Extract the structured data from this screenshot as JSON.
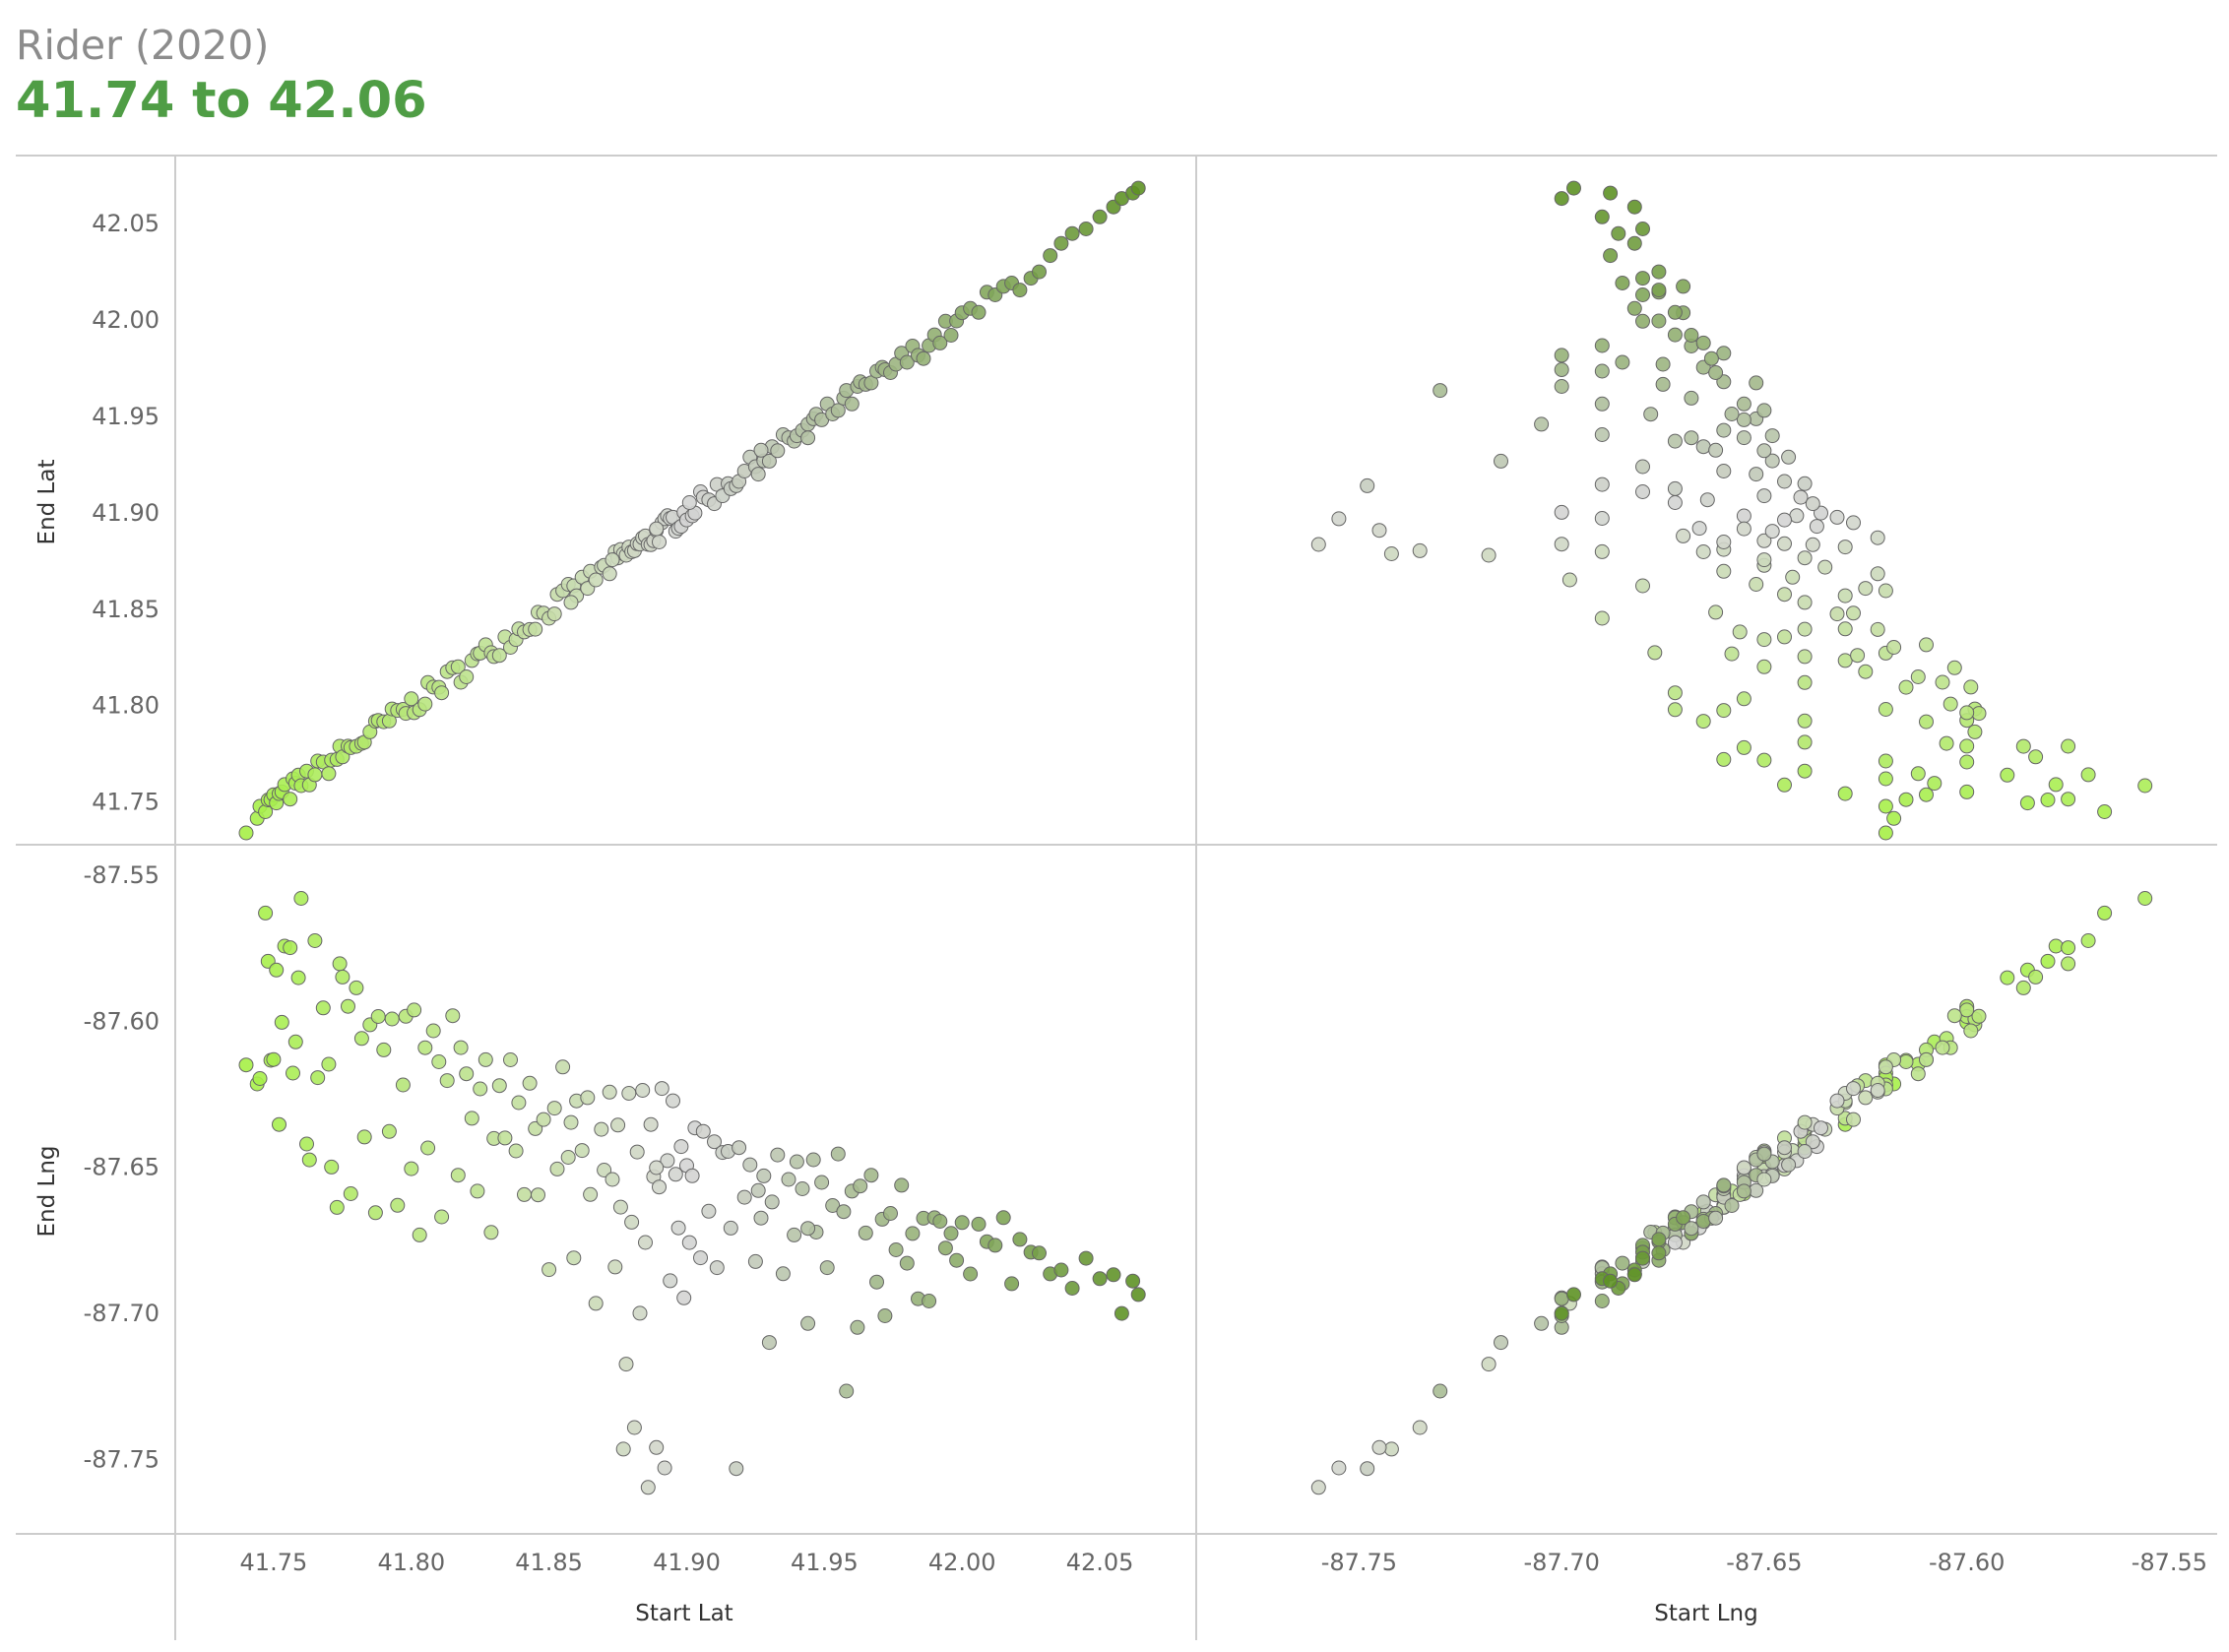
{
  "title": "Rider (2020)",
  "subtitle": "41.74 to 42.06",
  "colors": {
    "low": "#a6f046",
    "mid": "#d4d4d4",
    "high": "#5e9225",
    "border": "#666666",
    "frame": "#cccccc",
    "subtitle": "#4f9d45"
  },
  "chart_data": {
    "type": "scatter",
    "layout": "2x2 scatter matrix",
    "color_field": "Start Lat",
    "color_range": [
      41.74,
      42.06
    ],
    "grid": false,
    "columns": [
      {
        "label": "Start Lat",
        "range": [
          41.73,
          42.07
        ],
        "ticks": [
          41.75,
          41.8,
          41.85,
          41.9,
          41.95,
          42.0,
          42.05
        ],
        "tick_labels": [
          "41.75",
          "41.80",
          "41.85",
          "41.90",
          "41.95",
          "42.00",
          "42.05"
        ]
      },
      {
        "label": "Start Lng",
        "range": [
          -87.78,
          -87.545
        ],
        "ticks": [
          -87.75,
          -87.7,
          -87.65,
          -87.6,
          -87.55
        ],
        "tick_labels": [
          "-87.75",
          "-87.70",
          "-87.65",
          "-87.60",
          "-87.55"
        ]
      }
    ],
    "rows": [
      {
        "label": "End Lat",
        "range": [
          41.735,
          42.07
        ],
        "ticks": [
          41.75,
          41.8,
          41.85,
          41.9,
          41.95,
          42.0,
          42.05
        ],
        "tick_labels": [
          "41.75",
          "41.80",
          "41.85",
          "41.90",
          "41.95",
          "42.00",
          "42.05"
        ]
      },
      {
        "label": "End Lng",
        "range": [
          -87.77,
          -87.545
        ],
        "ticks": [
          -87.55,
          -87.6,
          -87.65,
          -87.7,
          -87.75
        ],
        "tick_labels": [
          "-87.55",
          "-87.60",
          "-87.65",
          "-87.70",
          "-87.75"
        ]
      }
    ],
    "stations": [
      [
        41.74,
        -87.62
      ],
      [
        41.744,
        -87.618
      ],
      [
        41.745,
        -87.62
      ],
      [
        41.747,
        -87.566
      ],
      [
        41.748,
        -87.58
      ],
      [
        41.749,
        -87.615
      ],
      [
        41.75,
        -87.61
      ],
      [
        41.751,
        -87.585
      ],
      [
        41.752,
        -87.63
      ],
      [
        41.753,
        -87.6
      ],
      [
        41.754,
        -87.578
      ],
      [
        41.756,
        -87.575
      ],
      [
        41.757,
        -87.62
      ],
      [
        41.758,
        -87.608
      ],
      [
        41.759,
        -87.59
      ],
      [
        41.76,
        -87.556
      ],
      [
        41.762,
        -87.64
      ],
      [
        41.763,
        -87.645
      ],
      [
        41.765,
        -87.57
      ],
      [
        41.766,
        -87.62
      ],
      [
        41.768,
        -87.6
      ],
      [
        41.77,
        -87.612
      ],
      [
        41.771,
        -87.65
      ],
      [
        41.773,
        -87.66
      ],
      [
        41.774,
        -87.575
      ],
      [
        41.775,
        -87.583
      ],
      [
        41.777,
        -87.6
      ],
      [
        41.778,
        -87.655
      ],
      [
        41.78,
        -87.586
      ],
      [
        41.782,
        -87.605
      ],
      [
        41.783,
        -87.64
      ],
      [
        41.785,
        -87.598
      ],
      [
        41.787,
        -87.665
      ],
      [
        41.788,
        -87.6
      ],
      [
        41.79,
        -87.61
      ],
      [
        41.792,
        -87.64
      ],
      [
        41.793,
        -87.598
      ],
      [
        41.795,
        -87.66
      ],
      [
        41.797,
        -87.62
      ],
      [
        41.798,
        -87.597
      ],
      [
        41.8,
        -87.655
      ],
      [
        41.801,
        -87.6
      ],
      [
        41.803,
        -87.672
      ],
      [
        41.805,
        -87.604
      ],
      [
        41.806,
        -87.64
      ],
      [
        41.808,
        -87.599
      ],
      [
        41.81,
        -87.615
      ],
      [
        41.811,
        -87.672
      ],
      [
        41.813,
        -87.625
      ],
      [
        41.815,
        -87.603
      ],
      [
        41.817,
        -87.65
      ],
      [
        41.818,
        -87.606
      ],
      [
        41.82,
        -87.612
      ],
      [
        41.822,
        -87.63
      ],
      [
        41.824,
        -87.658
      ],
      [
        41.825,
        -87.62
      ],
      [
        41.827,
        -87.61
      ],
      [
        41.829,
        -87.677
      ],
      [
        41.83,
        -87.64
      ],
      [
        41.832,
        -87.627
      ],
      [
        41.834,
        -87.645
      ],
      [
        41.836,
        -87.618
      ],
      [
        41.838,
        -87.65
      ],
      [
        41.839,
        -87.63
      ],
      [
        41.841,
        -87.656
      ],
      [
        41.843,
        -87.622
      ],
      [
        41.845,
        -87.64
      ],
      [
        41.846,
        -87.662
      ],
      [
        41.848,
        -87.628
      ],
      [
        41.85,
        -87.69
      ],
      [
        41.852,
        -87.632
      ],
      [
        41.853,
        -87.645
      ],
      [
        41.855,
        -87.62
      ],
      [
        41.857,
        -87.652
      ],
      [
        41.859,
        -87.68
      ],
      [
        41.86,
        -87.63
      ],
      [
        41.862,
        -87.643
      ],
      [
        41.864,
        -87.625
      ],
      [
        41.865,
        -87.66
      ],
      [
        41.867,
        -87.698
      ],
      [
        41.869,
        -87.635
      ],
      [
        41.87,
        -87.65
      ],
      [
        41.872,
        -87.622
      ],
      [
        41.874,
        -87.69
      ],
      [
        41.875,
        -87.64
      ],
      [
        41.876,
        -87.66
      ],
      [
        41.877,
        -87.742
      ],
      [
        41.878,
        -87.718
      ],
      [
        41.879,
        -87.63
      ],
      [
        41.88,
        -87.665
      ],
      [
        41.881,
        -87.735
      ],
      [
        41.882,
        -87.645
      ],
      [
        41.883,
        -87.7
      ],
      [
        41.884,
        -87.622
      ],
      [
        41.885,
        -87.67
      ],
      [
        41.886,
        -87.76
      ],
      [
        41.887,
        -87.638
      ],
      [
        41.888,
        -87.65
      ],
      [
        41.889,
        -87.745
      ],
      [
        41.89,
        -87.66
      ],
      [
        41.891,
        -87.628
      ],
      [
        41.892,
        -87.755
      ],
      [
        41.893,
        -87.642
      ],
      [
        41.894,
        -87.69
      ],
      [
        41.895,
        -87.632
      ],
      [
        41.896,
        -87.648
      ],
      [
        41.897,
        -87.666
      ],
      [
        41.898,
        -87.637
      ],
      [
        41.899,
        -87.7
      ],
      [
        41.9,
        -87.645
      ],
      [
        41.902,
        -87.655
      ],
      [
        41.903,
        -87.636
      ],
      [
        41.905,
        -87.68
      ],
      [
        41.906,
        -87.641
      ],
      [
        41.908,
        -87.664
      ],
      [
        41.91,
        -87.638
      ],
      [
        41.911,
        -87.69
      ],
      [
        41.913,
        -87.65
      ],
      [
        41.915,
        -87.64
      ],
      [
        41.916,
        -87.672
      ],
      [
        41.918,
        -87.748
      ],
      [
        41.919,
        -87.645
      ],
      [
        41.921,
        -87.66
      ],
      [
        41.923,
        -87.644
      ],
      [
        41.925,
        -87.68
      ],
      [
        41.926,
        -87.652
      ],
      [
        41.928,
        -87.648
      ],
      [
        41.93,
        -87.715
      ],
      [
        41.931,
        -87.665
      ],
      [
        41.933,
        -87.65
      ],
      [
        41.935,
        -87.69
      ],
      [
        41.937,
        -87.655
      ],
      [
        41.939,
        -87.672
      ],
      [
        41.94,
        -87.648
      ],
      [
        41.942,
        -87.66
      ],
      [
        41.944,
        -87.705
      ],
      [
        41.946,
        -87.652
      ],
      [
        41.947,
        -87.678
      ],
      [
        41.949,
        -87.655
      ],
      [
        41.951,
        -87.69
      ],
      [
        41.953,
        -87.658
      ],
      [
        41.955,
        -87.65
      ],
      [
        41.957,
        -87.668
      ],
      [
        41.958,
        -87.73
      ],
      [
        41.96,
        -87.655
      ],
      [
        41.962,
        -87.7
      ],
      [
        41.963,
        -87.66
      ],
      [
        41.965,
        -87.675
      ],
      [
        41.967,
        -87.652
      ],
      [
        41.969,
        -87.69
      ],
      [
        41.971,
        -87.665
      ],
      [
        41.972,
        -87.7
      ],
      [
        41.974,
        -87.662
      ],
      [
        41.976,
        -87.675
      ],
      [
        41.978,
        -87.66
      ],
      [
        41.98,
        -87.685
      ],
      [
        41.982,
        -87.668
      ],
      [
        41.984,
        -87.7
      ],
      [
        41.986,
        -87.663
      ],
      [
        41.988,
        -87.69
      ],
      [
        41.99,
        -87.672
      ],
      [
        41.992,
        -87.665
      ],
      [
        41.994,
        -87.68
      ],
      [
        41.996,
        -87.668
      ],
      [
        41.998,
        -87.676
      ],
      [
        42.0,
        -87.67
      ],
      [
        42.003,
        -87.682
      ],
      [
        42.006,
        -87.672
      ],
      [
        42.009,
        -87.676
      ],
      [
        42.012,
        -87.68
      ],
      [
        42.015,
        -87.67
      ],
      [
        42.018,
        -87.685
      ],
      [
        42.021,
        -87.676
      ],
      [
        42.025,
        -87.68
      ],
      [
        42.028,
        -87.676
      ],
      [
        42.032,
        -87.688
      ],
      [
        42.036,
        -87.682
      ],
      [
        42.04,
        -87.686
      ],
      [
        42.045,
        -87.68
      ],
      [
        42.05,
        -87.69
      ],
      [
        42.055,
        -87.682
      ],
      [
        42.058,
        -87.7
      ],
      [
        42.062,
        -87.688
      ],
      [
        42.064,
        -87.697
      ],
      [
        41.889,
        -87.655
      ],
      [
        41.901,
        -87.672
      ],
      [
        41.873,
        -87.65
      ],
      [
        41.858,
        -87.64
      ],
      [
        41.927,
        -87.662
      ],
      [
        41.944,
        -87.668
      ]
    ]
  }
}
